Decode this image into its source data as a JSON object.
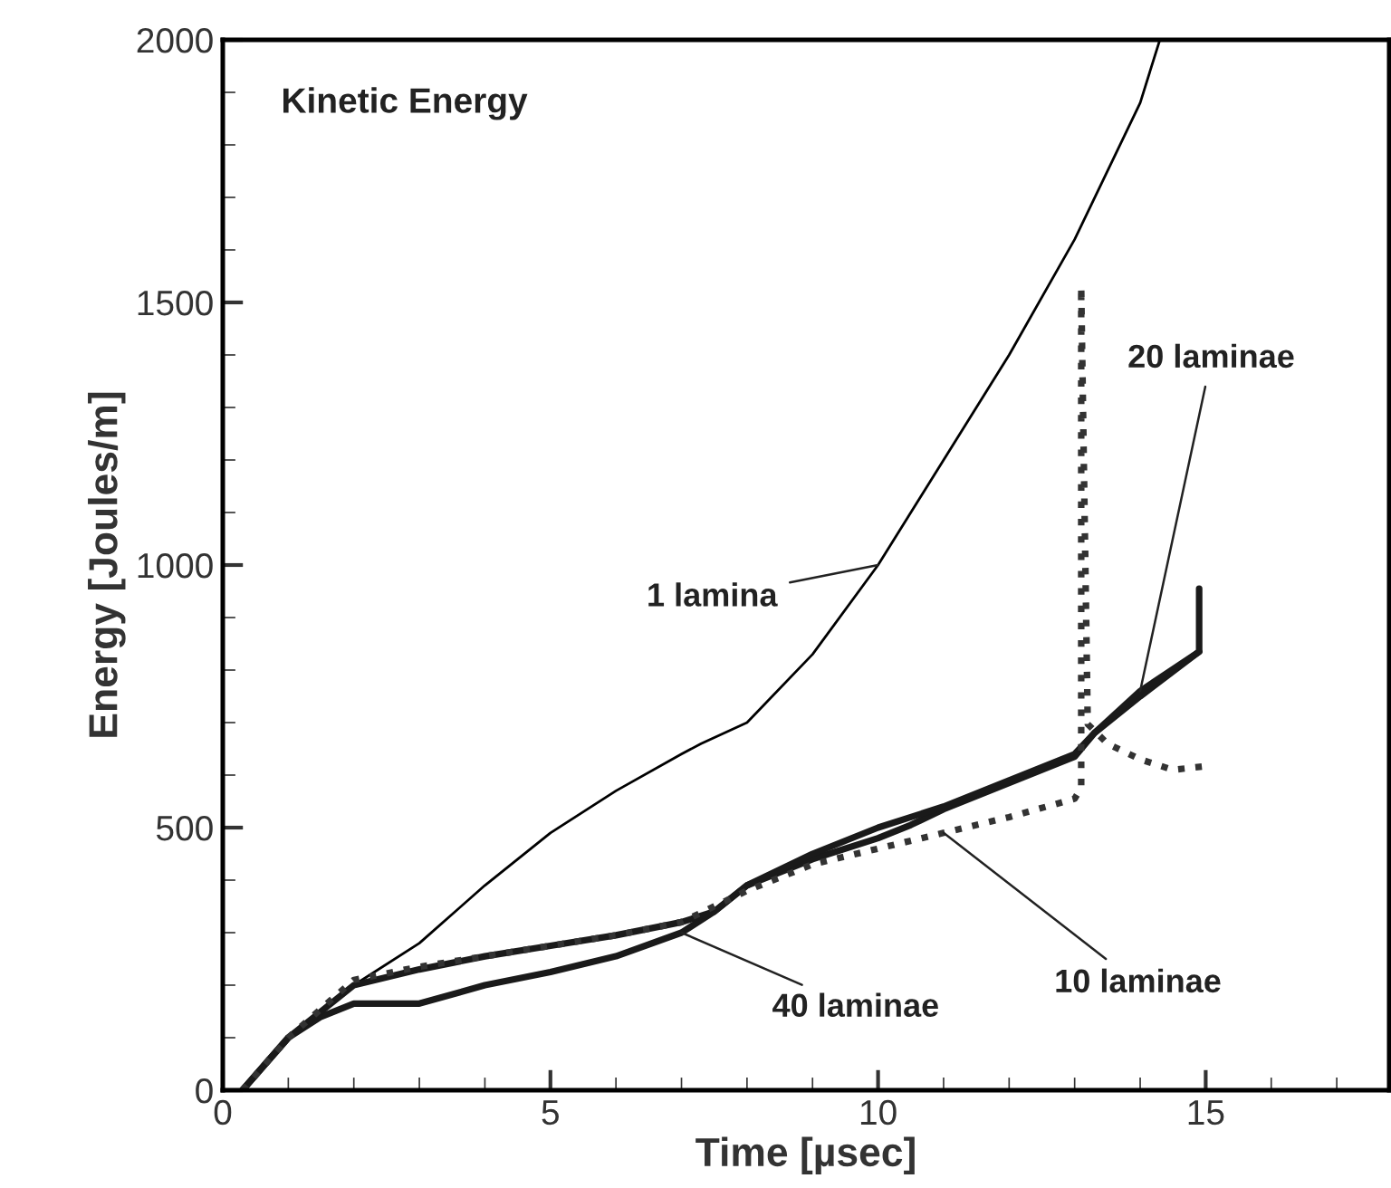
{
  "chart_data": {
    "type": "line",
    "title": "Kinetic Energy",
    "xlabel": "Time [µsec]",
    "ylabel": "Energy [Joules/m]",
    "xlim": [
      0,
      17.8
    ],
    "ylim": [
      0,
      2000
    ],
    "xticks": [
      0,
      5,
      10,
      15
    ],
    "yticks": [
      0,
      500,
      1000,
      1500,
      2000
    ],
    "grid": false,
    "marker": "none",
    "series": [
      {
        "color": "#000000",
        "line_style": "solid",
        "x": [
          0.3,
          1,
          2,
          3,
          4,
          5,
          6,
          7,
          7.3,
          8,
          9,
          10,
          11,
          12,
          13,
          14,
          14.3
        ],
        "values": [
          0,
          100,
          200,
          280,
          390,
          490,
          570,
          640,
          660,
          700,
          830,
          1000,
          1200,
          1400,
          1620,
          1880,
          2000
        ]
      },
      {
        "color": "#1a1a1a",
        "line_style": "solid",
        "x": [
          0.3,
          1,
          1.5,
          2,
          3,
          4,
          5,
          6,
          7,
          7.5,
          8,
          9,
          10,
          10.5,
          11,
          12,
          13,
          13.3,
          14,
          14.9
        ],
        "values": [
          0,
          100,
          140,
          165,
          165,
          200,
          225,
          255,
          300,
          340,
          390,
          440,
          480,
          505,
          535,
          585,
          635,
          680,
          750,
          835
        ]
      },
      {
        "color": "#1a1a1a",
        "line_style": "solid",
        "x": [
          0.3,
          1,
          2,
          3,
          4,
          5,
          6,
          7,
          7.5,
          8,
          9,
          10,
          10.5,
          11,
          12,
          13,
          13.3,
          14,
          14.9,
          14.9
        ],
        "values": [
          0,
          100,
          200,
          230,
          255,
          275,
          295,
          320,
          340,
          390,
          450,
          500,
          520,
          540,
          590,
          640,
          680,
          760,
          835,
          955
        ]
      },
      {
        "color": "#333333",
        "line_style": "dotted",
        "x": [
          0.3,
          1,
          2,
          3,
          4,
          5,
          6,
          7,
          8,
          9,
          9.5,
          10,
          11,
          12,
          13,
          13.1,
          13.1,
          13.2,
          13.5,
          14,
          14.5,
          15
        ],
        "values": [
          0,
          100,
          210,
          235,
          255,
          275,
          295,
          320,
          380,
          430,
          445,
          460,
          490,
          520,
          555,
          576,
          1530,
          697,
          660,
          630,
          610,
          617
        ]
      }
    ],
    "annotations": [
      {
        "text": "1 lamina",
        "x": 10,
        "y": 1000
      },
      {
        "text": "20 laminae",
        "x": 14.0,
        "y": 760
      },
      {
        "text": "10 laminae",
        "x": 11.0,
        "y": 490
      },
      {
        "text": "40 laminae",
        "x": 7.0,
        "y": 300
      }
    ]
  }
}
